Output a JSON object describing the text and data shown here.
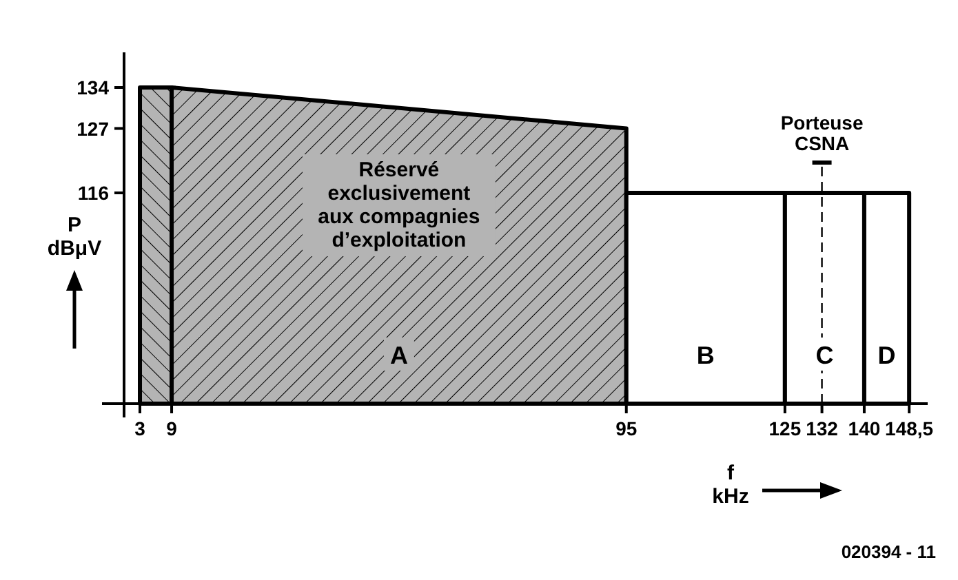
{
  "chart_data": {
    "type": "area",
    "xlabel": "f\nkHz",
    "ylabel": "P\ndBμV",
    "xlim": [
      0,
      152
    ],
    "ylim": [
      80,
      140
    ],
    "xticks": [
      3,
      9,
      95,
      125,
      132,
      140,
      {
        "value": 148.5,
        "label": "148,5"
      }
    ],
    "yticks": [
      116,
      127,
      134
    ],
    "series": [
      {
        "x": [
          3,
          9
        ],
        "values": [
          134,
          134
        ],
        "color": "#b4b4b4"
      },
      {
        "name": "A",
        "x": [
          9,
          95
        ],
        "values": [
          134,
          127
        ],
        "color": "#b4b4b4"
      },
      {
        "name": "B",
        "x": [
          95,
          125
        ],
        "values": [
          116,
          116
        ],
        "color": "#ffffff"
      },
      {
        "name": "C",
        "x": [
          125,
          140
        ],
        "values": [
          116,
          116
        ],
        "color": "#ffffff"
      },
      {
        "name": "D",
        "x": [
          140,
          148.5
        ],
        "values": [
          116,
          116
        ],
        "color": "#ffffff"
      }
    ],
    "ref_lines": [
      {
        "axis": "x",
        "value": 132,
        "label": "Porteuse\nCSNA",
        "line_style": "dashed"
      }
    ],
    "annotations": [
      "Réservé\nexclusivement\naux compagnies\nd’exploitation",
      "020394 - 11"
    ],
    "grid": false
  }
}
